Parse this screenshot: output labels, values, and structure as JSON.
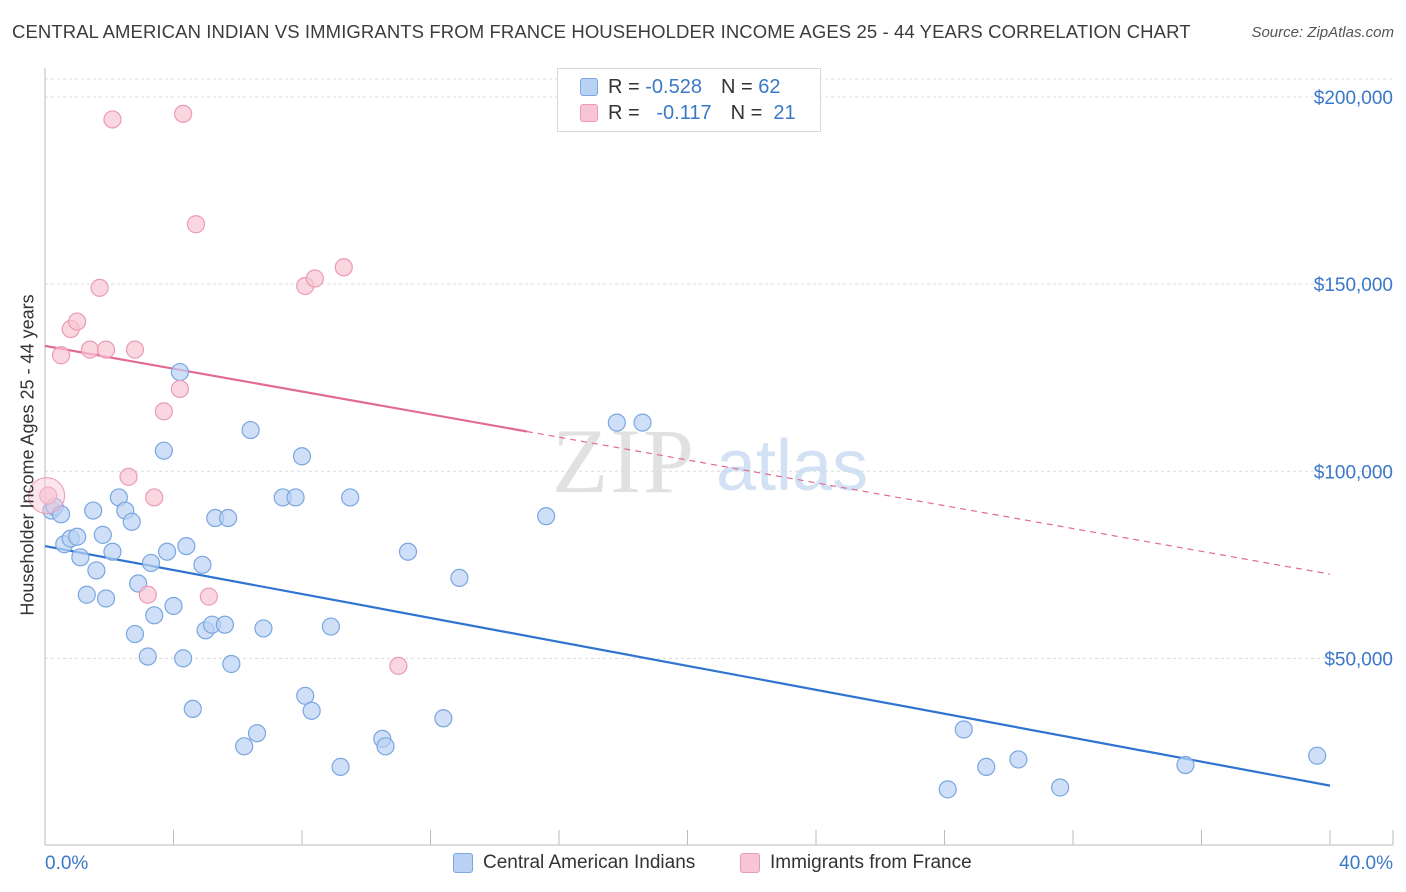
{
  "title": "CENTRAL AMERICAN INDIAN VS IMMIGRANTS FROM FRANCE HOUSEHOLDER INCOME AGES 25 - 44 YEARS CORRELATION CHART",
  "source": "Source: ZipAtlas.com",
  "watermark": {
    "zip": "ZIP",
    "atlas": "atlas"
  },
  "colors": {
    "blue_fill": "#b9d2f3",
    "blue_stroke": "#7aa7e0",
    "blue_line": "#2f74d0",
    "pink_fill": "#f8c5d4",
    "pink_stroke": "#eb9bb4",
    "pink_line": "#e26b94",
    "axis_text": "#3a78c9"
  },
  "legend_top": [
    {
      "r_label": "R =",
      "r_value": "-0.528",
      "n_label": "N =",
      "n_value": "62"
    },
    {
      "r_label": "R =",
      "r_value": "-0.117",
      "n_label": "N =",
      "n_value": "21"
    }
  ],
  "legend_bottom": [
    "Central American Indians",
    "Immigrants from France"
  ],
  "chart_data": {
    "type": "scatter",
    "title": "CENTRAL AMERICAN INDIAN VS IMMIGRANTS FROM FRANCE HOUSEHOLDER INCOME AGES 25 - 44 YEARS CORRELATION CHART",
    "xlabel": "",
    "ylabel": "Householder Income Ages 25 - 44 years",
    "xlim": [
      0,
      40
    ],
    "ylim": [
      0,
      205000
    ],
    "x_tick_labels": [
      "0.0%",
      "40.0%"
    ],
    "y_ticks": [
      {
        "value": 50000,
        "label": "$50,000"
      },
      {
        "value": 100000,
        "label": "$100,000"
      },
      {
        "value": 150000,
        "label": "$150,000"
      },
      {
        "value": 200000,
        "label": "$200,000"
      }
    ],
    "series": [
      {
        "name": "Central American Indians",
        "color": "blue",
        "trend": {
          "x": [
            0,
            40
          ],
          "y": [
            80000,
            16000
          ],
          "dashed_from": null
        },
        "points": [
          [
            0.2,
            89500
          ],
          [
            0.3,
            90500
          ],
          [
            0.5,
            88500
          ],
          [
            0.6,
            80500
          ],
          [
            0.8,
            82000
          ],
          [
            1.0,
            82500
          ],
          [
            1.1,
            77000
          ],
          [
            1.3,
            67000
          ],
          [
            1.5,
            89500
          ],
          [
            1.6,
            73500
          ],
          [
            1.8,
            83000
          ],
          [
            1.9,
            66000
          ],
          [
            2.1,
            78500
          ],
          [
            2.3,
            93000
          ],
          [
            2.5,
            89500
          ],
          [
            2.7,
            86500
          ],
          [
            2.8,
            56500
          ],
          [
            2.9,
            70000
          ],
          [
            3.2,
            50500
          ],
          [
            3.3,
            75500
          ],
          [
            3.4,
            61500
          ],
          [
            3.7,
            105500
          ],
          [
            3.8,
            78500
          ],
          [
            4.0,
            64000
          ],
          [
            4.2,
            126500
          ],
          [
            4.3,
            50000
          ],
          [
            4.4,
            80000
          ],
          [
            4.6,
            36500
          ],
          [
            4.9,
            75000
          ],
          [
            5.0,
            57500
          ],
          [
            5.2,
            59000
          ],
          [
            5.3,
            87500
          ],
          [
            5.6,
            59000
          ],
          [
            5.7,
            87500
          ],
          [
            5.8,
            48500
          ],
          [
            6.2,
            26500
          ],
          [
            6.4,
            111000
          ],
          [
            6.6,
            30000
          ],
          [
            6.8,
            58000
          ],
          [
            7.4,
            93000
          ],
          [
            7.8,
            93000
          ],
          [
            8.0,
            104000
          ],
          [
            8.1,
            40000
          ],
          [
            8.3,
            36000
          ],
          [
            8.9,
            58500
          ],
          [
            9.2,
            21000
          ],
          [
            9.5,
            93000
          ],
          [
            10.5,
            28500
          ],
          [
            10.6,
            26500
          ],
          [
            11.3,
            78500
          ],
          [
            12.4,
            34000
          ],
          [
            12.9,
            71500
          ],
          [
            15.6,
            88000
          ],
          [
            17.8,
            113000
          ],
          [
            18.6,
            113000
          ],
          [
            28.1,
            15000
          ],
          [
            28.6,
            31000
          ],
          [
            29.3,
            21000
          ],
          [
            30.3,
            23000
          ],
          [
            31.6,
            15500
          ],
          [
            35.5,
            21500
          ],
          [
            39.6,
            24000
          ]
        ]
      },
      {
        "name": "Immigrants from France",
        "color": "pink",
        "trend": {
          "x": [
            0,
            40
          ],
          "y": [
            133500,
            72500
          ],
          "dashed_from": 15
        },
        "points": [
          [
            0.1,
            93500
          ],
          [
            0.5,
            131000
          ],
          [
            0.8,
            138000
          ],
          [
            1.0,
            140000
          ],
          [
            1.4,
            132500
          ],
          [
            1.7,
            149000
          ],
          [
            1.9,
            132500
          ],
          [
            2.1,
            194000
          ],
          [
            2.6,
            98500
          ],
          [
            2.8,
            132500
          ],
          [
            3.2,
            67000
          ],
          [
            3.4,
            93000
          ],
          [
            3.7,
            116000
          ],
          [
            4.2,
            122000
          ],
          [
            4.3,
            195500
          ],
          [
            4.7,
            166000
          ],
          [
            5.1,
            66500
          ],
          [
            8.1,
            149500
          ],
          [
            8.4,
            151500
          ],
          [
            9.3,
            154500
          ],
          [
            11.0,
            48000
          ]
        ]
      }
    ]
  }
}
